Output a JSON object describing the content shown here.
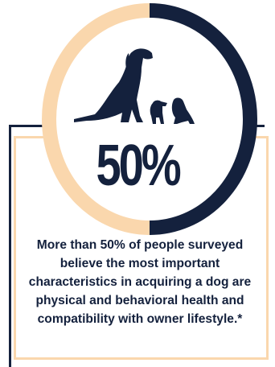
{
  "stat": {
    "value": "50%",
    "fraction": 0.5
  },
  "description": "More than 50% of people surveyed believe the most important characteristics in acquiring a dog are physical and behavioral health and compatibility with owner lifestyle.*",
  "colors": {
    "navy": "#14213d",
    "peach": "#fad7ad"
  },
  "icons": [
    "dog-silhouette-icon"
  ]
}
